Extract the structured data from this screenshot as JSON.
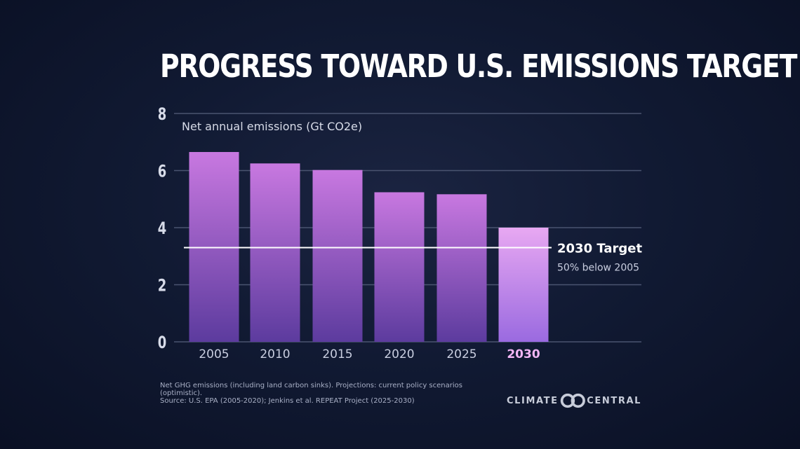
{
  "chart_data": {
    "type": "bar",
    "title": "PROGRESS TOWARD U.S. EMISSIONS TARGET",
    "ylabel": "Net annual emissions (Gt CO2e)",
    "xlabel": "",
    "categories": [
      "2005",
      "2010",
      "2015",
      "2020",
      "2025",
      "2030"
    ],
    "values": [
      6.65,
      6.25,
      6.02,
      5.24,
      5.17,
      4.0
    ],
    "ylim": [
      0,
      8
    ],
    "yticks": [
      0,
      2,
      4,
      6,
      8
    ],
    "grid": true,
    "highlight_category": "2030",
    "target_line": {
      "value": 3.3,
      "label": "2030 Target",
      "sublabel": "50% below 2005"
    },
    "colors": {
      "bar_top": "#c878e0",
      "bar_bottom": "#5c3b9e",
      "highlight_top": "#e8a8f2",
      "highlight_bottom": "#9a6ae0",
      "gridline": "#4a5470",
      "target_line": "#ffffff",
      "highlight_label": "#f2b6f5"
    }
  },
  "footnote": {
    "line1": "Net GHG emissions (including land carbon sinks). Projections: current policy scenarios (optimistic).",
    "line2": "Source: U.S. EPA (2005-2020); Jenkins et al. REPEAT Project (2025-2030)"
  },
  "logo": {
    "left_text": "CLIMATE",
    "right_text": "CENTRAL",
    "icon": "interlocking-circles-icon"
  }
}
